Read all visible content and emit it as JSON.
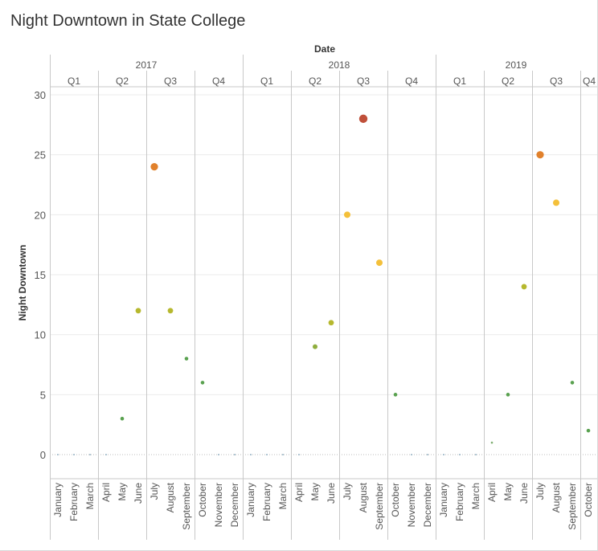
{
  "title": "Night Downtown in State College",
  "header_label": "Date",
  "ylabel": "Night Downtown",
  "colors": {
    "grid": "#ebebeb",
    "divider": "#c8c8c8",
    "zero_line": "#bdbdbd",
    "text": "#555555",
    "point_low": "#59a14f",
    "point_mid": "#b6b82e",
    "point_yellow": "#f4c03a",
    "point_orange": "#e1812c",
    "point_high": "#c0503a"
  },
  "chart_data": {
    "type": "scatter",
    "title": "Night Downtown in State College",
    "xlabel": "Date",
    "ylabel": "Night Downtown",
    "ylim": [
      -2,
      31
    ],
    "yticks": [
      0,
      5,
      10,
      15,
      20,
      25,
      30
    ],
    "grid": true,
    "years": [
      {
        "label": "2017",
        "quarters": [
          {
            "label": "Q1",
            "months": [
              "January",
              "February",
              "March"
            ],
            "values": [
              0,
              0,
              0
            ]
          },
          {
            "label": "Q2",
            "months": [
              "April",
              "May",
              "June"
            ],
            "values": [
              0,
              3,
              12
            ]
          },
          {
            "label": "Q3",
            "months": [
              "July",
              "August",
              "September"
            ],
            "values": [
              24,
              12,
              8
            ]
          },
          {
            "label": "Q4",
            "months": [
              "October",
              "November",
              "December"
            ],
            "values": [
              6,
              0,
              0
            ]
          }
        ]
      },
      {
        "label": "2018",
        "quarters": [
          {
            "label": "Q1",
            "months": [
              "January",
              "February",
              "March"
            ],
            "values": [
              0,
              0,
              0
            ]
          },
          {
            "label": "Q2",
            "months": [
              "April",
              "May",
              "June"
            ],
            "values": [
              0,
              9,
              11
            ]
          },
          {
            "label": "Q3",
            "months": [
              "July",
              "August",
              "September"
            ],
            "values": [
              20,
              28,
              16
            ]
          },
          {
            "label": "Q4",
            "months": [
              "October",
              "November",
              "December"
            ],
            "values": [
              5,
              0,
              0
            ]
          }
        ]
      },
      {
        "label": "2019",
        "quarters": [
          {
            "label": "Q1",
            "months": [
              "January",
              "February",
              "March"
            ],
            "values": [
              0,
              0,
              0
            ]
          },
          {
            "label": "Q2",
            "months": [
              "April",
              "May",
              "June"
            ],
            "values": [
              1,
              5,
              14
            ]
          },
          {
            "label": "Q3",
            "months": [
              "July",
              "August",
              "September"
            ],
            "values": [
              25,
              21,
              6
            ]
          },
          {
            "label": "Q4",
            "months": [
              "October"
            ],
            "values": [
              2
            ]
          }
        ]
      }
    ]
  }
}
